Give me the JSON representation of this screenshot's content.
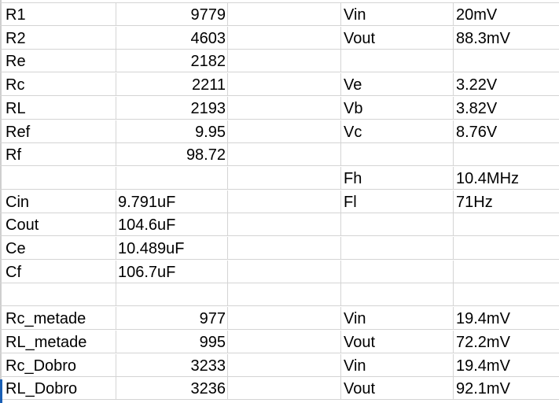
{
  "rows": [
    {
      "a": "R1",
      "b": "9779",
      "d": "Vin",
      "e": "20mV"
    },
    {
      "a": "R2",
      "b": "4603",
      "d": "Vout",
      "e": "88.3mV"
    },
    {
      "a": "Re",
      "b": "2182",
      "d": "",
      "e": ""
    },
    {
      "a": "Rc",
      "b": "2211",
      "d": "Ve",
      "e": "3.22V"
    },
    {
      "a": "RL",
      "b": "2193",
      "d": "Vb",
      "e": "3.82V"
    },
    {
      "a": "Ref",
      "b": "9.95",
      "d": "Vc",
      "e": "8.76V"
    },
    {
      "a": "Rf",
      "b": "98.72",
      "d": "",
      "e": ""
    },
    {
      "a": "",
      "b": "",
      "d": "Fh",
      "e": "10.4MHz"
    },
    {
      "a": "Cin",
      "b": "9.791uF",
      "d": "Fl",
      "e": "71Hz"
    },
    {
      "a": "Cout",
      "b": "104.6uF",
      "d": "",
      "e": ""
    },
    {
      "a": "Ce",
      "b": "10.489uF",
      "d": "",
      "e": ""
    },
    {
      "a": "Cf",
      "b": "106.7uF",
      "d": "",
      "e": ""
    },
    {
      "a": "",
      "b": "",
      "d": "",
      "e": ""
    },
    {
      "a": "Rc_metade",
      "b": "977",
      "d": "Vin",
      "e": "19.4mV"
    },
    {
      "a": "RL_metade",
      "b": "995",
      "d": "Vout",
      "e": "72.2mV"
    },
    {
      "a": "Rc_Dobro",
      "b": "3233",
      "d": "Vin",
      "e": "19.4mV"
    },
    {
      "a": "RL_Dobro",
      "b": "3236",
      "d": "Vout",
      "e": "92.1mV"
    }
  ],
  "align_b": [
    "num",
    "num",
    "num",
    "num",
    "num",
    "num",
    "num",
    "txt",
    "txt",
    "txt",
    "txt",
    "txt",
    "txt",
    "num",
    "num",
    "num",
    "num"
  ]
}
